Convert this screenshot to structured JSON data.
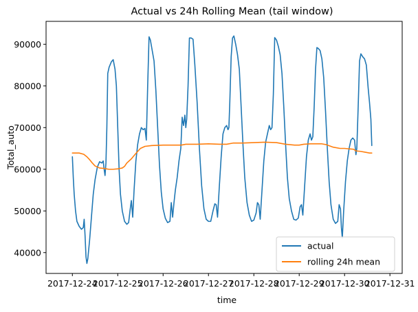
{
  "chart_data": {
    "type": "line",
    "title": "Actual vs 24h Rolling Mean (tail window)",
    "xlabel": "time",
    "ylabel": "Total_auto",
    "x_ticks": [
      "2017-12-24",
      "2017-12-25",
      "2017-12-26",
      "2017-12-27",
      "2017-12-28",
      "2017-12-29",
      "2017-12-30",
      "2017-12-31"
    ],
    "y_ticks": [
      40000,
      50000,
      60000,
      70000,
      80000,
      90000
    ],
    "ylim": [
      35000,
      95500
    ],
    "xlim_days": [
      -0.58,
      7.27
    ],
    "legend_position": "lower right",
    "colors": {
      "actual": "#1f77b4",
      "rolling": "#ff7f0e"
    },
    "series": [
      {
        "name": "actual",
        "points": [
          [
            0.0,
            63000
          ],
          [
            0.02,
            58000
          ],
          [
            0.04,
            54000
          ],
          [
            0.07,
            50000
          ],
          [
            0.1,
            47500
          ],
          [
            0.15,
            46300
          ],
          [
            0.2,
            45600
          ],
          [
            0.24,
            46000
          ],
          [
            0.26,
            48000
          ],
          [
            0.28,
            44000
          ],
          [
            0.3,
            39000
          ],
          [
            0.32,
            37400
          ],
          [
            0.34,
            38500
          ],
          [
            0.38,
            43000
          ],
          [
            0.42,
            48500
          ],
          [
            0.46,
            54000
          ],
          [
            0.5,
            57500
          ],
          [
            0.55,
            60500
          ],
          [
            0.6,
            61800
          ],
          [
            0.65,
            61500
          ],
          [
            0.68,
            62000
          ],
          [
            0.7,
            60000
          ],
          [
            0.72,
            58500
          ],
          [
            0.74,
            61500
          ],
          [
            0.76,
            70000
          ],
          [
            0.78,
            83000
          ],
          [
            0.81,
            84500
          ],
          [
            0.86,
            85800
          ],
          [
            0.9,
            86300
          ],
          [
            0.94,
            84000
          ],
          [
            0.97,
            80000
          ],
          [
            1.0,
            70000
          ],
          [
            1.03,
            60000
          ],
          [
            1.06,
            54000
          ],
          [
            1.1,
            50000
          ],
          [
            1.15,
            47500
          ],
          [
            1.2,
            46800
          ],
          [
            1.24,
            47200
          ],
          [
            1.27,
            50000
          ],
          [
            1.3,
            52500
          ],
          [
            1.33,
            48500
          ],
          [
            1.36,
            55000
          ],
          [
            1.4,
            62000
          ],
          [
            1.44,
            66000
          ],
          [
            1.48,
            68500
          ],
          [
            1.52,
            70000
          ],
          [
            1.56,
            69500
          ],
          [
            1.6,
            69800
          ],
          [
            1.63,
            67000
          ],
          [
            1.66,
            80000
          ],
          [
            1.69,
            91800
          ],
          [
            1.72,
            91000
          ],
          [
            1.76,
            88500
          ],
          [
            1.8,
            86000
          ],
          [
            1.84,
            79000
          ],
          [
            1.88,
            70000
          ],
          [
            1.92,
            61000
          ],
          [
            1.96,
            54500
          ],
          [
            2.0,
            50500
          ],
          [
            2.05,
            48200
          ],
          [
            2.1,
            47200
          ],
          [
            2.15,
            47500
          ],
          [
            2.18,
            52000
          ],
          [
            2.21,
            48500
          ],
          [
            2.24,
            52000
          ],
          [
            2.27,
            55000
          ],
          [
            2.31,
            58000
          ],
          [
            2.35,
            62000
          ],
          [
            2.39,
            65000
          ],
          [
            2.42,
            72500
          ],
          [
            2.45,
            70500
          ],
          [
            2.48,
            73000
          ],
          [
            2.5,
            70000
          ],
          [
            2.52,
            72000
          ],
          [
            2.55,
            80000
          ],
          [
            2.58,
            91500
          ],
          [
            2.62,
            91500
          ],
          [
            2.66,
            91200
          ],
          [
            2.7,
            85000
          ],
          [
            2.75,
            76000
          ],
          [
            2.8,
            65000
          ],
          [
            2.85,
            56000
          ],
          [
            2.9,
            50500
          ],
          [
            2.95,
            48000
          ],
          [
            3.0,
            47500
          ],
          [
            3.05,
            47500
          ],
          [
            3.1,
            50000
          ],
          [
            3.14,
            51700
          ],
          [
            3.17,
            51500
          ],
          [
            3.2,
            48500
          ],
          [
            3.24,
            56000
          ],
          [
            3.28,
            63000
          ],
          [
            3.32,
            68500
          ],
          [
            3.36,
            70000
          ],
          [
            3.4,
            70500
          ],
          [
            3.43,
            69500
          ],
          [
            3.45,
            70000
          ],
          [
            3.47,
            76000
          ],
          [
            3.5,
            87000
          ],
          [
            3.53,
            91500
          ],
          [
            3.56,
            92000
          ],
          [
            3.6,
            90000
          ],
          [
            3.64,
            87500
          ],
          [
            3.68,
            84000
          ],
          [
            3.72,
            75000
          ],
          [
            3.76,
            66000
          ],
          [
            3.8,
            58000
          ],
          [
            3.85,
            52000
          ],
          [
            3.9,
            49000
          ],
          [
            3.95,
            47500
          ],
          [
            4.0,
            47800
          ],
          [
            4.05,
            49500
          ],
          [
            4.08,
            52000
          ],
          [
            4.11,
            51500
          ],
          [
            4.14,
            48000
          ],
          [
            4.18,
            55000
          ],
          [
            4.22,
            62000
          ],
          [
            4.26,
            66500
          ],
          [
            4.3,
            68500
          ],
          [
            4.34,
            70500
          ],
          [
            4.37,
            69500
          ],
          [
            4.4,
            70000
          ],
          [
            4.43,
            78000
          ],
          [
            4.46,
            91600
          ],
          [
            4.5,
            91000
          ],
          [
            4.54,
            89500
          ],
          [
            4.58,
            87500
          ],
          [
            4.62,
            83000
          ],
          [
            4.66,
            75000
          ],
          [
            4.7,
            66000
          ],
          [
            4.74,
            58000
          ],
          [
            4.78,
            53000
          ],
          [
            4.83,
            50000
          ],
          [
            4.88,
            48000
          ],
          [
            4.93,
            47800
          ],
          [
            4.98,
            48300
          ],
          [
            5.02,
            51000
          ],
          [
            5.05,
            51500
          ],
          [
            5.08,
            49000
          ],
          [
            5.12,
            56000
          ],
          [
            5.16,
            63000
          ],
          [
            5.2,
            67000
          ],
          [
            5.24,
            68500
          ],
          [
            5.27,
            67000
          ],
          [
            5.3,
            67800
          ],
          [
            5.33,
            75000
          ],
          [
            5.36,
            84000
          ],
          [
            5.39,
            89200
          ],
          [
            5.42,
            89000
          ],
          [
            5.46,
            88500
          ],
          [
            5.5,
            86500
          ],
          [
            5.54,
            82000
          ],
          [
            5.58,
            74000
          ],
          [
            5.62,
            65000
          ],
          [
            5.66,
            57000
          ],
          [
            5.7,
            51500
          ],
          [
            5.75,
            48000
          ],
          [
            5.8,
            47000
          ],
          [
            5.85,
            47500
          ],
          [
            5.88,
            51500
          ],
          [
            5.91,
            50500
          ],
          [
            5.93,
            46000
          ],
          [
            5.95,
            43500
          ],
          [
            5.98,
            50000
          ],
          [
            6.02,
            57000
          ],
          [
            6.06,
            62000
          ],
          [
            6.1,
            65000
          ],
          [
            6.14,
            67000
          ],
          [
            6.18,
            67500
          ],
          [
            6.22,
            67000
          ],
          [
            6.25,
            63500
          ],
          [
            6.27,
            65000
          ],
          [
            6.3,
            75000
          ],
          [
            6.33,
            86000
          ],
          [
            6.36,
            87700
          ],
          [
            6.4,
            87000
          ],
          [
            6.44,
            86500
          ],
          [
            6.48,
            85000
          ],
          [
            6.52,
            79500
          ],
          [
            6.55,
            76000
          ],
          [
            6.58,
            72000
          ],
          [
            6.6,
            65700
          ]
        ]
      },
      {
        "name": "rolling 24h mean",
        "points": [
          [
            0.0,
            63900
          ],
          [
            0.15,
            63900
          ],
          [
            0.25,
            63600
          ],
          [
            0.32,
            63000
          ],
          [
            0.38,
            62300
          ],
          [
            0.44,
            61500
          ],
          [
            0.5,
            60800
          ],
          [
            0.6,
            60300
          ],
          [
            0.7,
            60200
          ],
          [
            0.8,
            60000
          ],
          [
            0.9,
            60000
          ],
          [
            1.0,
            60100
          ],
          [
            1.1,
            60300
          ],
          [
            1.15,
            60700
          ],
          [
            1.2,
            61500
          ],
          [
            1.3,
            62500
          ],
          [
            1.4,
            63800
          ],
          [
            1.5,
            65000
          ],
          [
            1.6,
            65500
          ],
          [
            1.75,
            65700
          ],
          [
            2.0,
            65800
          ],
          [
            2.25,
            65800
          ],
          [
            2.4,
            65800
          ],
          [
            2.5,
            66000
          ],
          [
            2.75,
            66000
          ],
          [
            3.0,
            66100
          ],
          [
            3.25,
            66000
          ],
          [
            3.4,
            66000
          ],
          [
            3.55,
            66300
          ],
          [
            3.75,
            66300
          ],
          [
            4.0,
            66400
          ],
          [
            4.25,
            66500
          ],
          [
            4.5,
            66400
          ],
          [
            4.7,
            66000
          ],
          [
            4.9,
            65800
          ],
          [
            5.0,
            65800
          ],
          [
            5.1,
            66000
          ],
          [
            5.25,
            66100
          ],
          [
            5.5,
            66100
          ],
          [
            5.6,
            65900
          ],
          [
            5.75,
            65300
          ],
          [
            5.9,
            65000
          ],
          [
            6.0,
            65000
          ],
          [
            6.1,
            64900
          ],
          [
            6.2,
            64800
          ],
          [
            6.25,
            64400
          ],
          [
            6.35,
            64300
          ],
          [
            6.45,
            64100
          ],
          [
            6.55,
            63900
          ],
          [
            6.6,
            63900
          ]
        ]
      }
    ]
  }
}
